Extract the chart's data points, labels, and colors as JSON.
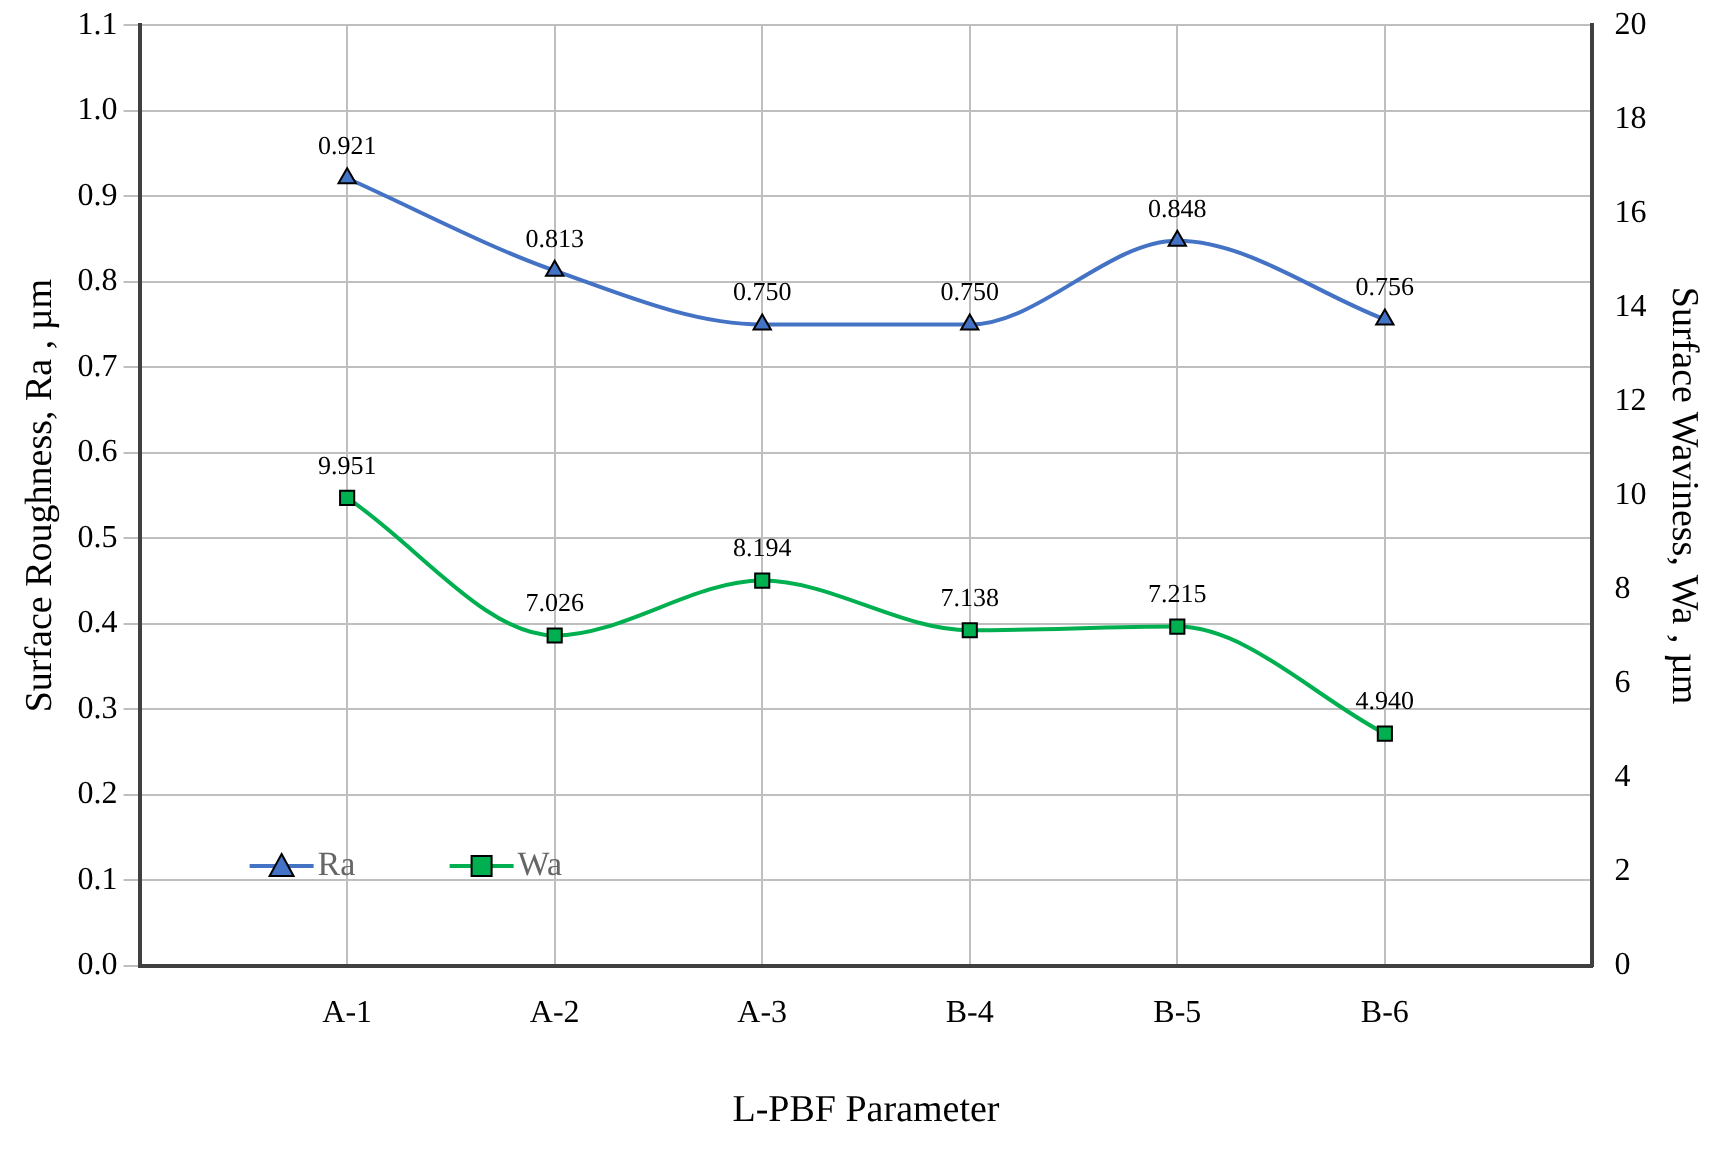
{
  "chart_data": {
    "type": "line",
    "xlabel": "L-PBF Parameter",
    "ylabel": "Surface Roughness, Ra , µm",
    "y2label": "Surface Waviness, Wa , µm",
    "categories": [
      "A-1",
      "A-2",
      "A-3",
      "B-4",
      "B-5",
      "B-6"
    ],
    "series": [
      {
        "name": "Ra",
        "color": "#4472c4",
        "marker": "triangle",
        "values": [
          0.921,
          0.813,
          0.75,
          0.75,
          0.848,
          0.756
        ],
        "value_labels": [
          "0.921",
          "0.813",
          "0.750",
          "0.750",
          "0.848",
          "0.756"
        ]
      },
      {
        "name": "Wa",
        "color": "#00b050",
        "marker": "square",
        "axis": "y2",
        "values": [
          9.951,
          7.026,
          8.194,
          7.138,
          7.215,
          4.94
        ],
        "value_labels": [
          "9.951",
          "7.026",
          "8.194",
          "7.138",
          "7.215",
          "4.940"
        ]
      }
    ],
    "ylim": [
      0,
      1.1
    ],
    "yticks": [
      {
        "value": 0,
        "label": "0.0"
      },
      {
        "value": 0.1,
        "label": "0.1"
      },
      {
        "value": 0.2,
        "label": "0.2"
      },
      {
        "value": 0.3,
        "label": "0.3"
      },
      {
        "value": 0.4,
        "label": "0.4"
      },
      {
        "value": 0.5,
        "label": "0.5"
      },
      {
        "value": 0.6,
        "label": "0.6"
      },
      {
        "value": 0.7,
        "label": "0.7"
      },
      {
        "value": 0.8,
        "label": "0.8"
      },
      {
        "value": 0.9,
        "label": "0.9"
      },
      {
        "value": 1,
        "label": "1.0"
      },
      {
        "value": 1.1,
        "label": "1.1"
      }
    ],
    "y2lim": [
      0,
      20
    ],
    "y2ticks": [
      0,
      2,
      4,
      6,
      8,
      10,
      12,
      14,
      16,
      18,
      20
    ],
    "grid": true,
    "legend": "bottom left"
  }
}
